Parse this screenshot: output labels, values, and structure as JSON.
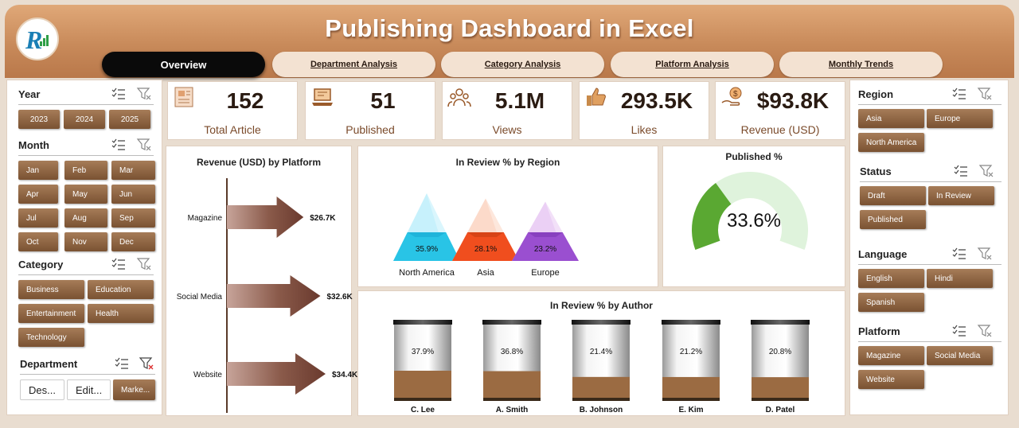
{
  "header": {
    "title": "Publishing Dashboard in Excel",
    "tabs": [
      {
        "label": "Overview",
        "active": true
      },
      {
        "label": "Department Analysis",
        "active": false
      },
      {
        "label": "Category Analysis",
        "active": false
      },
      {
        "label": "Platform Analysis",
        "active": false
      },
      {
        "label": "Monthly Trends",
        "active": false
      }
    ],
    "logo_text": "R"
  },
  "left_slicers": {
    "year": {
      "title": "Year",
      "items": [
        "2023",
        "2024",
        "2025"
      ]
    },
    "month": {
      "title": "Month",
      "items": [
        "Jan",
        "Feb",
        "Mar",
        "Apr",
        "May",
        "Jun",
        "Jul",
        "Aug",
        "Sep",
        "Oct",
        "Nov",
        "Dec"
      ]
    },
    "category": {
      "title": "Category",
      "items": [
        "Business",
        "Education",
        "Entertainment",
        "Health",
        "Technology"
      ]
    },
    "department": {
      "title": "Department",
      "items": [
        "Des...",
        "Edit...",
        "Marke..."
      ]
    }
  },
  "right_slicers": {
    "region": {
      "title": "Region",
      "items": [
        "Asia",
        "Europe",
        "North America"
      ]
    },
    "status": {
      "title": "Status",
      "items": [
        "Draft",
        "In Review",
        "Published"
      ]
    },
    "language": {
      "title": "Language",
      "items": [
        "English",
        "Hindi",
        "Spanish"
      ]
    },
    "platform": {
      "title": "Platform",
      "items": [
        "Magazine",
        "Social Media",
        "Website"
      ]
    }
  },
  "kpis": [
    {
      "value": "152",
      "label": "Total Article",
      "icon": "article-icon"
    },
    {
      "value": "51",
      "label": "Published",
      "icon": "laptop-icon"
    },
    {
      "value": "5.1M",
      "label": "Views",
      "icon": "users-icon"
    },
    {
      "value": "293.5K",
      "label": "Likes",
      "icon": "thumbs-up-icon"
    },
    {
      "value": "$93.8K",
      "label": "Revenue (USD)",
      "icon": "money-icon"
    }
  ],
  "chart_data": [
    {
      "type": "bar",
      "title": "Revenue (USD) by Platform",
      "categories": [
        "Magazine",
        "Social Media",
        "Website"
      ],
      "values": [
        26.7,
        32.6,
        34.4
      ],
      "value_labels": [
        "$26.7K",
        "$32.6K",
        "$34.4K"
      ],
      "unit": "$K"
    },
    {
      "type": "bar",
      "title": "In Review % by Region",
      "categories": [
        "North America",
        "Asia",
        "Europe"
      ],
      "values": [
        35.9,
        28.1,
        23.2
      ],
      "value_labels": [
        "35.9%",
        "28.1%",
        "23.2%"
      ],
      "colors": [
        "#29c4e6",
        "#f04e1e",
        "#9a4fd0"
      ]
    },
    {
      "type": "gauge",
      "title": "Published %",
      "value": 33.6,
      "value_label": "33.6%",
      "colors": [
        "#5aa832",
        "#dff3dc"
      ]
    },
    {
      "type": "bar",
      "title": "In Review % by Author",
      "categories": [
        "C. Lee",
        "A. Smith",
        "B. Johnson",
        "E. Kim",
        "D. Patel"
      ],
      "values": [
        37.9,
        36.8,
        21.4,
        21.2,
        20.8
      ],
      "value_labels": [
        "37.9%",
        "36.8%",
        "21.4%",
        "21.2%",
        "20.8%"
      ]
    }
  ]
}
